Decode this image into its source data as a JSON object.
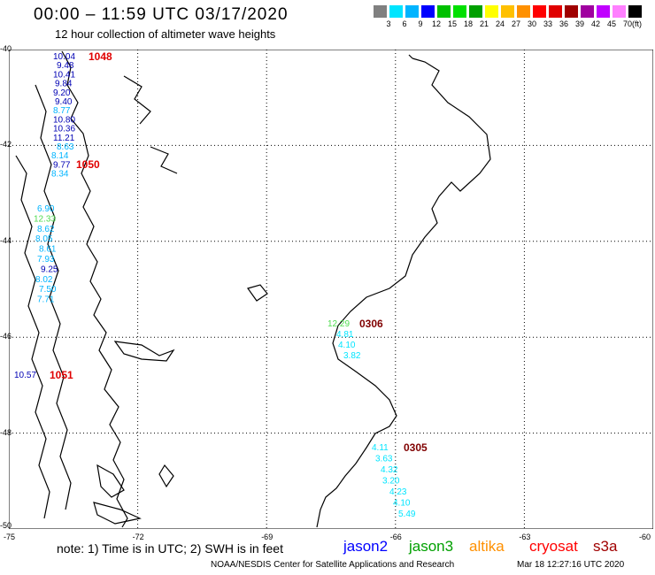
{
  "header": {
    "title": "00:00 – 11:59 UTC 03/17/2020",
    "subtitle": "12 hour collection of altimeter wave heights"
  },
  "legend": {
    "unit": "(ft)",
    "bins": [
      {
        "label": "",
        "color": "#808080"
      },
      {
        "label": "3",
        "color": "#00e5ff"
      },
      {
        "label": "6",
        "color": "#00b4ff"
      },
      {
        "label": "9",
        "color": "#0000ff"
      },
      {
        "label": "12",
        "color": "#00c000"
      },
      {
        "label": "15",
        "color": "#00e000"
      },
      {
        "label": "18",
        "color": "#00a000"
      },
      {
        "label": "21",
        "color": "#ffff00"
      },
      {
        "label": "24",
        "color": "#ffc000"
      },
      {
        "label": "27",
        "color": "#ff9000"
      },
      {
        "label": "30",
        "color": "#ff0000"
      },
      {
        "label": "33",
        "color": "#e00000"
      },
      {
        "label": "36",
        "color": "#a00000"
      },
      {
        "label": "39",
        "color": "#a000a0"
      },
      {
        "label": "42",
        "color": "#c000ff"
      },
      {
        "label": "45",
        "color": "#ff80ff"
      },
      {
        "label": "70",
        "color": "#000000"
      }
    ]
  },
  "map": {
    "lat_ticks": [
      "-40",
      "-42",
      "-44",
      "-46",
      "-48",
      "-50"
    ],
    "lon_ticks": [
      "-75",
      "-72",
      "-69",
      "-66",
      "-63",
      "-60"
    ],
    "tracks": [
      {
        "time": "1048",
        "time_color": "#e00000",
        "points": [
          {
            "v": "10.04",
            "c": "#0000b4"
          },
          {
            "v": "9.48",
            "c": "#0000b4"
          },
          {
            "v": "10.41",
            "c": "#0000b4"
          },
          {
            "v": "9.84",
            "c": "#0000b4"
          },
          {
            "v": "9.20",
            "c": "#0000b4"
          },
          {
            "v": "9.40",
            "c": "#0000b4"
          },
          {
            "v": "8.77",
            "c": "#00b4ff"
          },
          {
            "v": "10.80",
            "c": "#0000b4"
          },
          {
            "v": "10.36",
            "c": "#0000b4"
          },
          {
            "v": "11.21",
            "c": "#0000b4"
          },
          {
            "v": "8.63",
            "c": "#00b4ff"
          },
          {
            "v": "8.14",
            "c": "#00b4ff"
          },
          {
            "v": "9.77",
            "c": "#0000b4"
          },
          {
            "v": "8.34",
            "c": "#00b4ff"
          }
        ]
      },
      {
        "time": "1050",
        "time_color": "#e00000",
        "points": [
          {
            "v": "6.90",
            "c": "#00b4ff"
          },
          {
            "v": "12.33",
            "c": "#50dc50"
          },
          {
            "v": "8.62",
            "c": "#00b4ff"
          },
          {
            "v": "8.05",
            "c": "#00b4ff"
          },
          {
            "v": "8.61",
            "c": "#00b4ff"
          },
          {
            "v": "7.93",
            "c": "#00b4ff"
          },
          {
            "v": "9.25",
            "c": "#0000b4"
          },
          {
            "v": "8.02",
            "c": "#00b4ff"
          },
          {
            "v": "7.50",
            "c": "#00b4ff"
          },
          {
            "v": "7.71",
            "c": "#00b4ff"
          }
        ]
      },
      {
        "time": "1051",
        "time_color": "#e00000",
        "points": [
          {
            "v": "10.57",
            "c": "#0000b4"
          }
        ]
      },
      {
        "time": "0306",
        "time_color": "#800000",
        "points": [
          {
            "v": "12.29",
            "c": "#50dc50"
          },
          {
            "v": "4.81",
            "c": "#00e5ff"
          },
          {
            "v": "4.10",
            "c": "#00e5ff"
          },
          {
            "v": "3.82",
            "c": "#00e5ff"
          }
        ]
      },
      {
        "time": "0305",
        "time_color": "#800000",
        "points": [
          {
            "v": "4.11",
            "c": "#00e5ff"
          },
          {
            "v": "3.63",
            "c": "#00e5ff"
          },
          {
            "v": "4.32",
            "c": "#00e5ff"
          },
          {
            "v": "3.20",
            "c": "#00e5ff"
          },
          {
            "v": "4.23",
            "c": "#00e5ff"
          },
          {
            "v": "4.10",
            "c": "#00e5ff"
          },
          {
            "v": "5.49",
            "c": "#00e5ff"
          }
        ]
      }
    ]
  },
  "footer": {
    "note": "note:  1) Time is in UTC;  2) SWH is in feet",
    "satellites": [
      {
        "name": "jason2",
        "color": "#0000ff"
      },
      {
        "name": "jason3",
        "color": "#00a000"
      },
      {
        "name": "altika",
        "color": "#ff9000"
      },
      {
        "name": "cryosat",
        "color": "#ff0000"
      },
      {
        "name": "s3a",
        "color": "#a00000"
      }
    ],
    "credit": "NOAA/NESDIS Center for Satellite Applications and Research",
    "timestamp": "Mar 18 12:27:16 UTC 2020"
  }
}
